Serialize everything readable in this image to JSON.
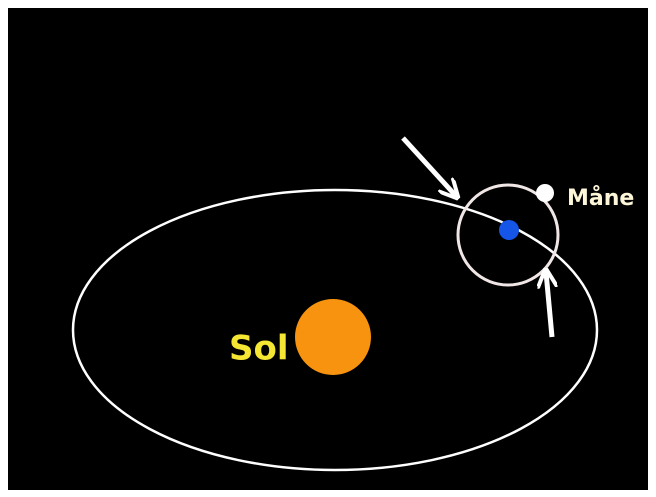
{
  "labels": {
    "sun": "Sol",
    "moon": "Måne"
  }
}
